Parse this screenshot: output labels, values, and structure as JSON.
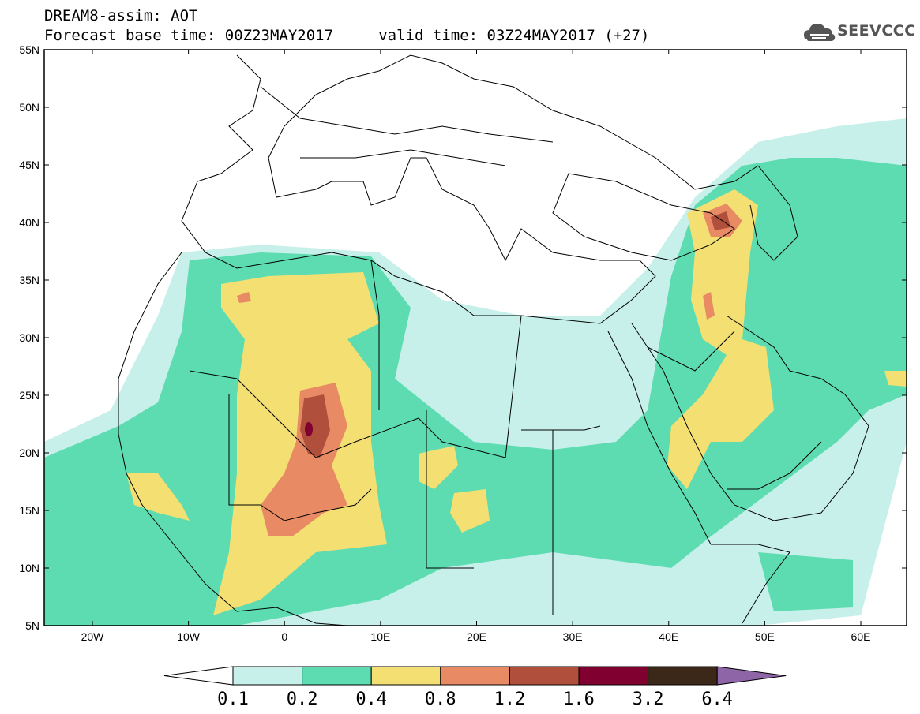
{
  "header": {
    "title_line1": "DREAM8-assim: AOT",
    "title_line2": "Forecast base time: 00Z23MAY2017     valid time: 03Z24MAY2017 (+27)",
    "logo_text": "SEEVCCC"
  },
  "map": {
    "lat_labels": [
      "55N",
      "50N",
      "45N",
      "40N",
      "35N",
      "30N",
      "25N",
      "20N",
      "15N",
      "10N",
      "5N"
    ],
    "lon_labels": [
      "20W",
      "10W",
      "0",
      "10E",
      "20E",
      "30E",
      "40E",
      "50E",
      "60E"
    ]
  },
  "colorbar": {
    "levels": [
      "0.1",
      "0.2",
      "0.4",
      "0.8",
      "1.2",
      "1.6",
      "3.2",
      "6.4"
    ],
    "colors": [
      "#c8f0ea",
      "#5ddcb2",
      "#f4e072",
      "#e88a64",
      "#b0503c",
      "#800030",
      "#3c2818",
      "#8e66a8"
    ]
  }
}
